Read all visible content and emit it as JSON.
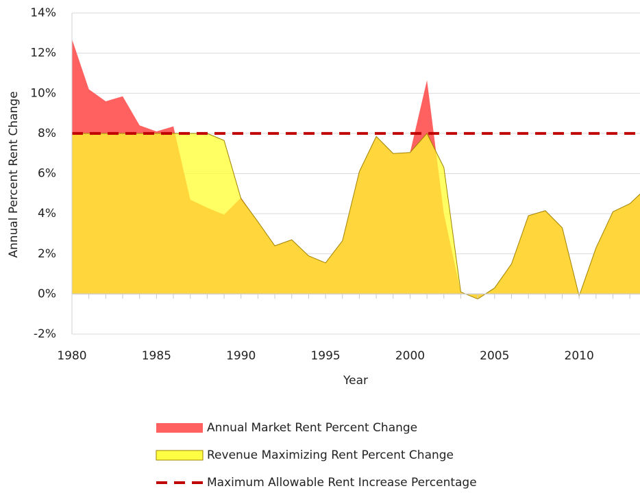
{
  "chart_data": {
    "type": "area",
    "x": [
      1980,
      1981,
      1982,
      1983,
      1984,
      1985,
      1986,
      1987,
      1988,
      1989,
      1990,
      1991,
      1992,
      1993,
      1994,
      1995,
      1996,
      1997,
      1998,
      1999,
      2000,
      2001,
      2002,
      2003,
      2004,
      2005,
      2006,
      2007,
      2008,
      2009,
      2010,
      2011,
      2012,
      2013,
      2014
    ],
    "xlabel": "Year",
    "ylabel": "Annual Percent Rent Change",
    "xlim": [
      1980,
      2013.6
    ],
    "xticks": [
      1980,
      1985,
      1990,
      1995,
      2000,
      2005,
      2010
    ],
    "ylim": [
      -2,
      14
    ],
    "yticks": [
      {
        "value": -2,
        "label": "-2%"
      },
      {
        "value": 0,
        "label": "0%"
      },
      {
        "value": 2,
        "label": "2%"
      },
      {
        "value": 4,
        "label": "4%"
      },
      {
        "value": 6,
        "label": "6%"
      },
      {
        "value": 8,
        "label": "8%"
      },
      {
        "value": 10,
        "label": "10%"
      },
      {
        "value": 12,
        "label": "12%"
      },
      {
        "value": 14,
        "label": "14%"
      }
    ],
    "grid": true,
    "series": [
      {
        "name": "Annual Market Rent Percent Change",
        "type": "area",
        "color": "#ff6060",
        "values": [
          12.7,
          10.2,
          9.6,
          9.85,
          8.4,
          8.1,
          8.35,
          4.7,
          4.3,
          3.95,
          4.8,
          3.6,
          2.4,
          2.7,
          1.9,
          1.55,
          2.65,
          6.1,
          7.85,
          7.0,
          7.05,
          10.65,
          4.0,
          0.1,
          -0.25,
          0.3,
          1.5,
          3.9,
          4.15,
          3.3,
          -0.1,
          2.3,
          4.1,
          4.5,
          5.3
        ]
      },
      {
        "name": "Revenue Maximizing Rent Percent Change",
        "type": "area",
        "color": "#ffff30",
        "values": [
          8,
          8,
          8,
          8,
          8,
          8,
          8,
          8,
          8,
          7.65,
          4.75,
          3.6,
          2.4,
          2.7,
          1.9,
          1.55,
          2.65,
          6.1,
          7.85,
          7.0,
          7.05,
          8.0,
          6.3,
          0.1,
          -0.25,
          0.3,
          1.5,
          3.9,
          4.15,
          3.3,
          -0.1,
          2.3,
          4.1,
          4.5,
          5.3
        ]
      },
      {
        "name": "Maximum Allowable Rent Increase Percentage",
        "type": "line",
        "color": "#c00000",
        "values": [
          8,
          8,
          8,
          8,
          8,
          8,
          8,
          8,
          8,
          8,
          8,
          8,
          8,
          8,
          8,
          8,
          8,
          8,
          8,
          8,
          8,
          8,
          8,
          8,
          8,
          8,
          8,
          8,
          8,
          8,
          8,
          8,
          8,
          8,
          8
        ]
      }
    ]
  }
}
